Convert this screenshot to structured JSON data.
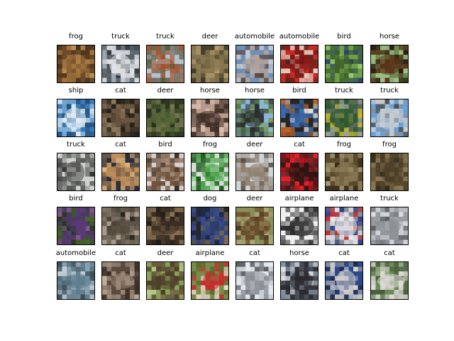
{
  "grid": {
    "rows": 5,
    "cols": 8,
    "images": [
      {
        "label": "frog",
        "palette": [
          "#6b4a2a",
          "#a4763e",
          "#4a2f18",
          "#c79a5a"
        ]
      },
      {
        "label": "truck",
        "palette": [
          "#9aa6b0",
          "#e2e4e6",
          "#4f5a62",
          "#2e3338"
        ]
      },
      {
        "label": "truck",
        "palette": [
          "#b2c2cc",
          "#a0522d",
          "#4d5e3a",
          "#6f6658"
        ]
      },
      {
        "label": "deer",
        "palette": [
          "#5e5538",
          "#8a7a52",
          "#3e3a26",
          "#b49a6c"
        ]
      },
      {
        "label": "automobile",
        "palette": [
          "#6f8fb6",
          "#b8a498",
          "#58463e",
          "#c9cdd3"
        ]
      },
      {
        "label": "automobile",
        "palette": [
          "#c42a24",
          "#7a1814",
          "#e6d6c8",
          "#3a2a26"
        ]
      },
      {
        "label": "bird",
        "palette": [
          "#6fa046",
          "#3a5c2a",
          "#2c3f6c",
          "#9fcf72"
        ]
      },
      {
        "label": "horse",
        "palette": [
          "#6a8a52",
          "#5a3218",
          "#2c1a0e",
          "#9fbf86"
        ]
      },
      {
        "label": "ship",
        "palette": [
          "#3a7ab6",
          "#e6eef4",
          "#24507a",
          "#86b6de"
        ]
      },
      {
        "label": "cat",
        "palette": [
          "#3f3426",
          "#6e5a42",
          "#22201a",
          "#9a8464"
        ]
      },
      {
        "label": "deer",
        "palette": [
          "#3f4a2a",
          "#5a6a3a",
          "#2a321c",
          "#7a7a52"
        ]
      },
      {
        "label": "horse",
        "palette": [
          "#b89a8a",
          "#3a2a22",
          "#d8c0b0",
          "#6a564a"
        ]
      },
      {
        "label": "horse",
        "palette": [
          "#8ab6d8",
          "#2a2a26",
          "#4a6a3a",
          "#7a9a5a"
        ]
      },
      {
        "label": "bird",
        "palette": [
          "#2a2622",
          "#3a6ab0",
          "#c86a2a",
          "#e0dcd4"
        ]
      },
      {
        "label": "truck",
        "palette": [
          "#5a6a5a",
          "#2a5a2a",
          "#c8b82a",
          "#9aa49a"
        ]
      },
      {
        "label": "truck",
        "palette": [
          "#6aa0d6",
          "#c8ccd0",
          "#8a8e92",
          "#4a4e52"
        ]
      },
      {
        "label": "truck",
        "palette": [
          "#d0d2d0",
          "#4a4a48",
          "#8a9088",
          "#2a2a28"
        ]
      },
      {
        "label": "cat",
        "palette": [
          "#2a2e3a",
          "#c8925a",
          "#e4b67a",
          "#6a5a4a"
        ]
      },
      {
        "label": "bird",
        "palette": [
          "#d8d0cc",
          "#6a4a32",
          "#3a2a1e",
          "#a08068"
        ]
      },
      {
        "label": "frog",
        "palette": [
          "#d6dcd6",
          "#3a9a3a",
          "#1e5a1e",
          "#8ad08a"
        ]
      },
      {
        "label": "deer",
        "palette": [
          "#d0d4d6",
          "#8a7a6a",
          "#a8a4a0",
          "#5a4e44"
        ]
      },
      {
        "label": "cat",
        "palette": [
          "#e0202a",
          "#2a1612",
          "#a0141a",
          "#5a2a2a"
        ]
      },
      {
        "label": "frog",
        "palette": [
          "#5a4a2e",
          "#8a7a56",
          "#3a2e1c",
          "#a89a74"
        ]
      },
      {
        "label": "frog",
        "palette": [
          "#6a5a3a",
          "#4a3e28",
          "#8a7a54",
          "#2e2618"
        ]
      },
      {
        "label": "bird",
        "palette": [
          "#2a3a22",
          "#5a3a7a",
          "#4a6a2e",
          "#8a5a9a"
        ]
      },
      {
        "label": "frog",
        "palette": [
          "#a89a8a",
          "#4a4236",
          "#6a5e4e",
          "#2a261e"
        ]
      },
      {
        "label": "cat",
        "palette": [
          "#5a4a36",
          "#3a2e22",
          "#8a7052",
          "#1e1a14"
        ]
      },
      {
        "label": "dog",
        "palette": [
          "#1e2a4a",
          "#3a4e8a",
          "#7a6a52",
          "#2a2620"
        ]
      },
      {
        "label": "deer",
        "palette": [
          "#8a8e5a",
          "#6a4a2a",
          "#b0a878",
          "#4a3a22"
        ]
      },
      {
        "label": "airplane",
        "palette": [
          "#f0f0f0",
          "#2a2a2a",
          "#8a8a8a",
          "#4a4a4a"
        ]
      },
      {
        "label": "airplane",
        "palette": [
          "#8a8e96",
          "#e8e8ec",
          "#c82a2a",
          "#2a3a8a"
        ]
      },
      {
        "label": "truck",
        "palette": [
          "#b8bcc0",
          "#8a8e92",
          "#5a5e62",
          "#dcdee0"
        ]
      },
      {
        "label": "automobile",
        "palette": [
          "#8aa0b0",
          "#5a7a8a",
          "#3a4a52",
          "#c8d4dc"
        ]
      },
      {
        "label": "cat",
        "palette": [
          "#5a4a3e",
          "#a08a7a",
          "#3a2e26",
          "#c8b4a4"
        ]
      },
      {
        "label": "deer",
        "palette": [
          "#8aa05a",
          "#4a3a26",
          "#6a5a3e",
          "#b8c88a"
        ]
      },
      {
        "label": "airplane",
        "palette": [
          "#7a8a4a",
          "#c82a2a",
          "#5a6a2e",
          "#e8d8c8"
        ]
      },
      {
        "label": "cat",
        "palette": [
          "#c8d0d8",
          "#8a8e96",
          "#e8ecf0",
          "#5a5e66"
        ]
      },
      {
        "label": "horse",
        "palette": [
          "#4a4e5a",
          "#2a2a2e",
          "#8a9aaa",
          "#e0e4e8"
        ]
      },
      {
        "label": "cat",
        "palette": [
          "#2a4a8a",
          "#d8d4d0",
          "#9a9aa0",
          "#1e2a4a"
        ]
      },
      {
        "label": "cat",
        "palette": [
          "#6a8a5a",
          "#e0dcd8",
          "#4a5e3e",
          "#9aaa8a"
        ]
      }
    ]
  }
}
